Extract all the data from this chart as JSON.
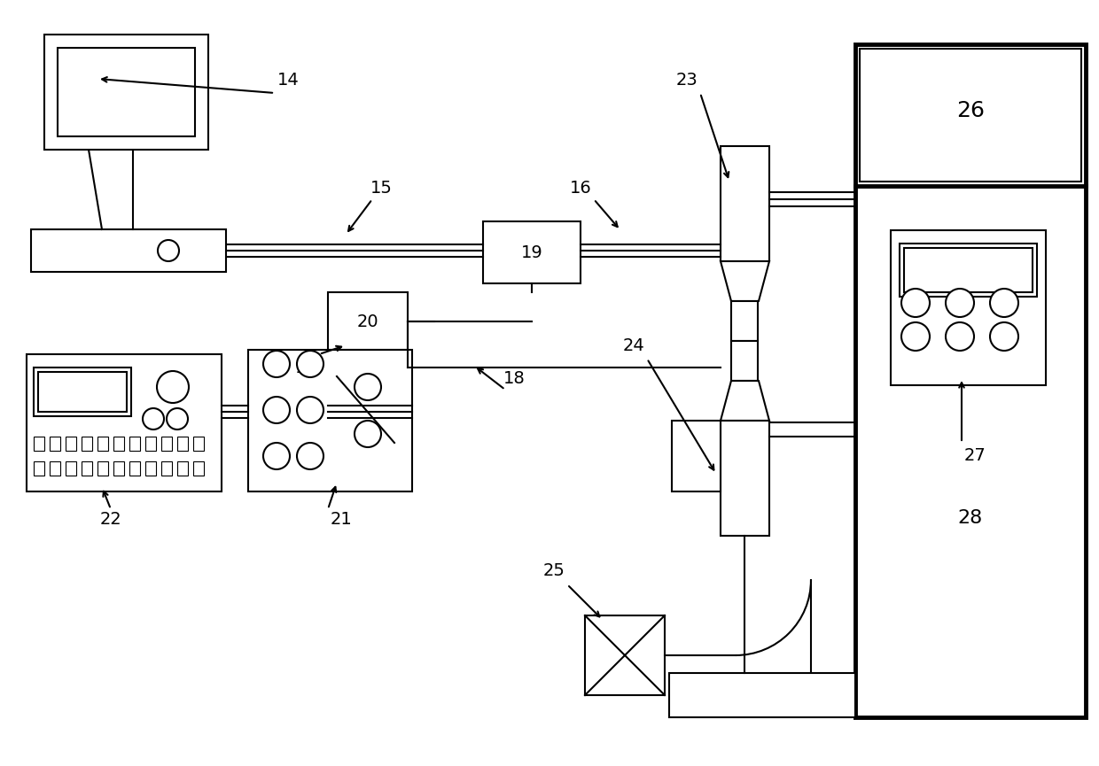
{
  "bg_color": "#ffffff",
  "lc": "#000000",
  "lw": 1.5,
  "lw_thick": 3.5,
  "fig_w": 12.4,
  "fig_h": 8.65,
  "dpi": 100
}
